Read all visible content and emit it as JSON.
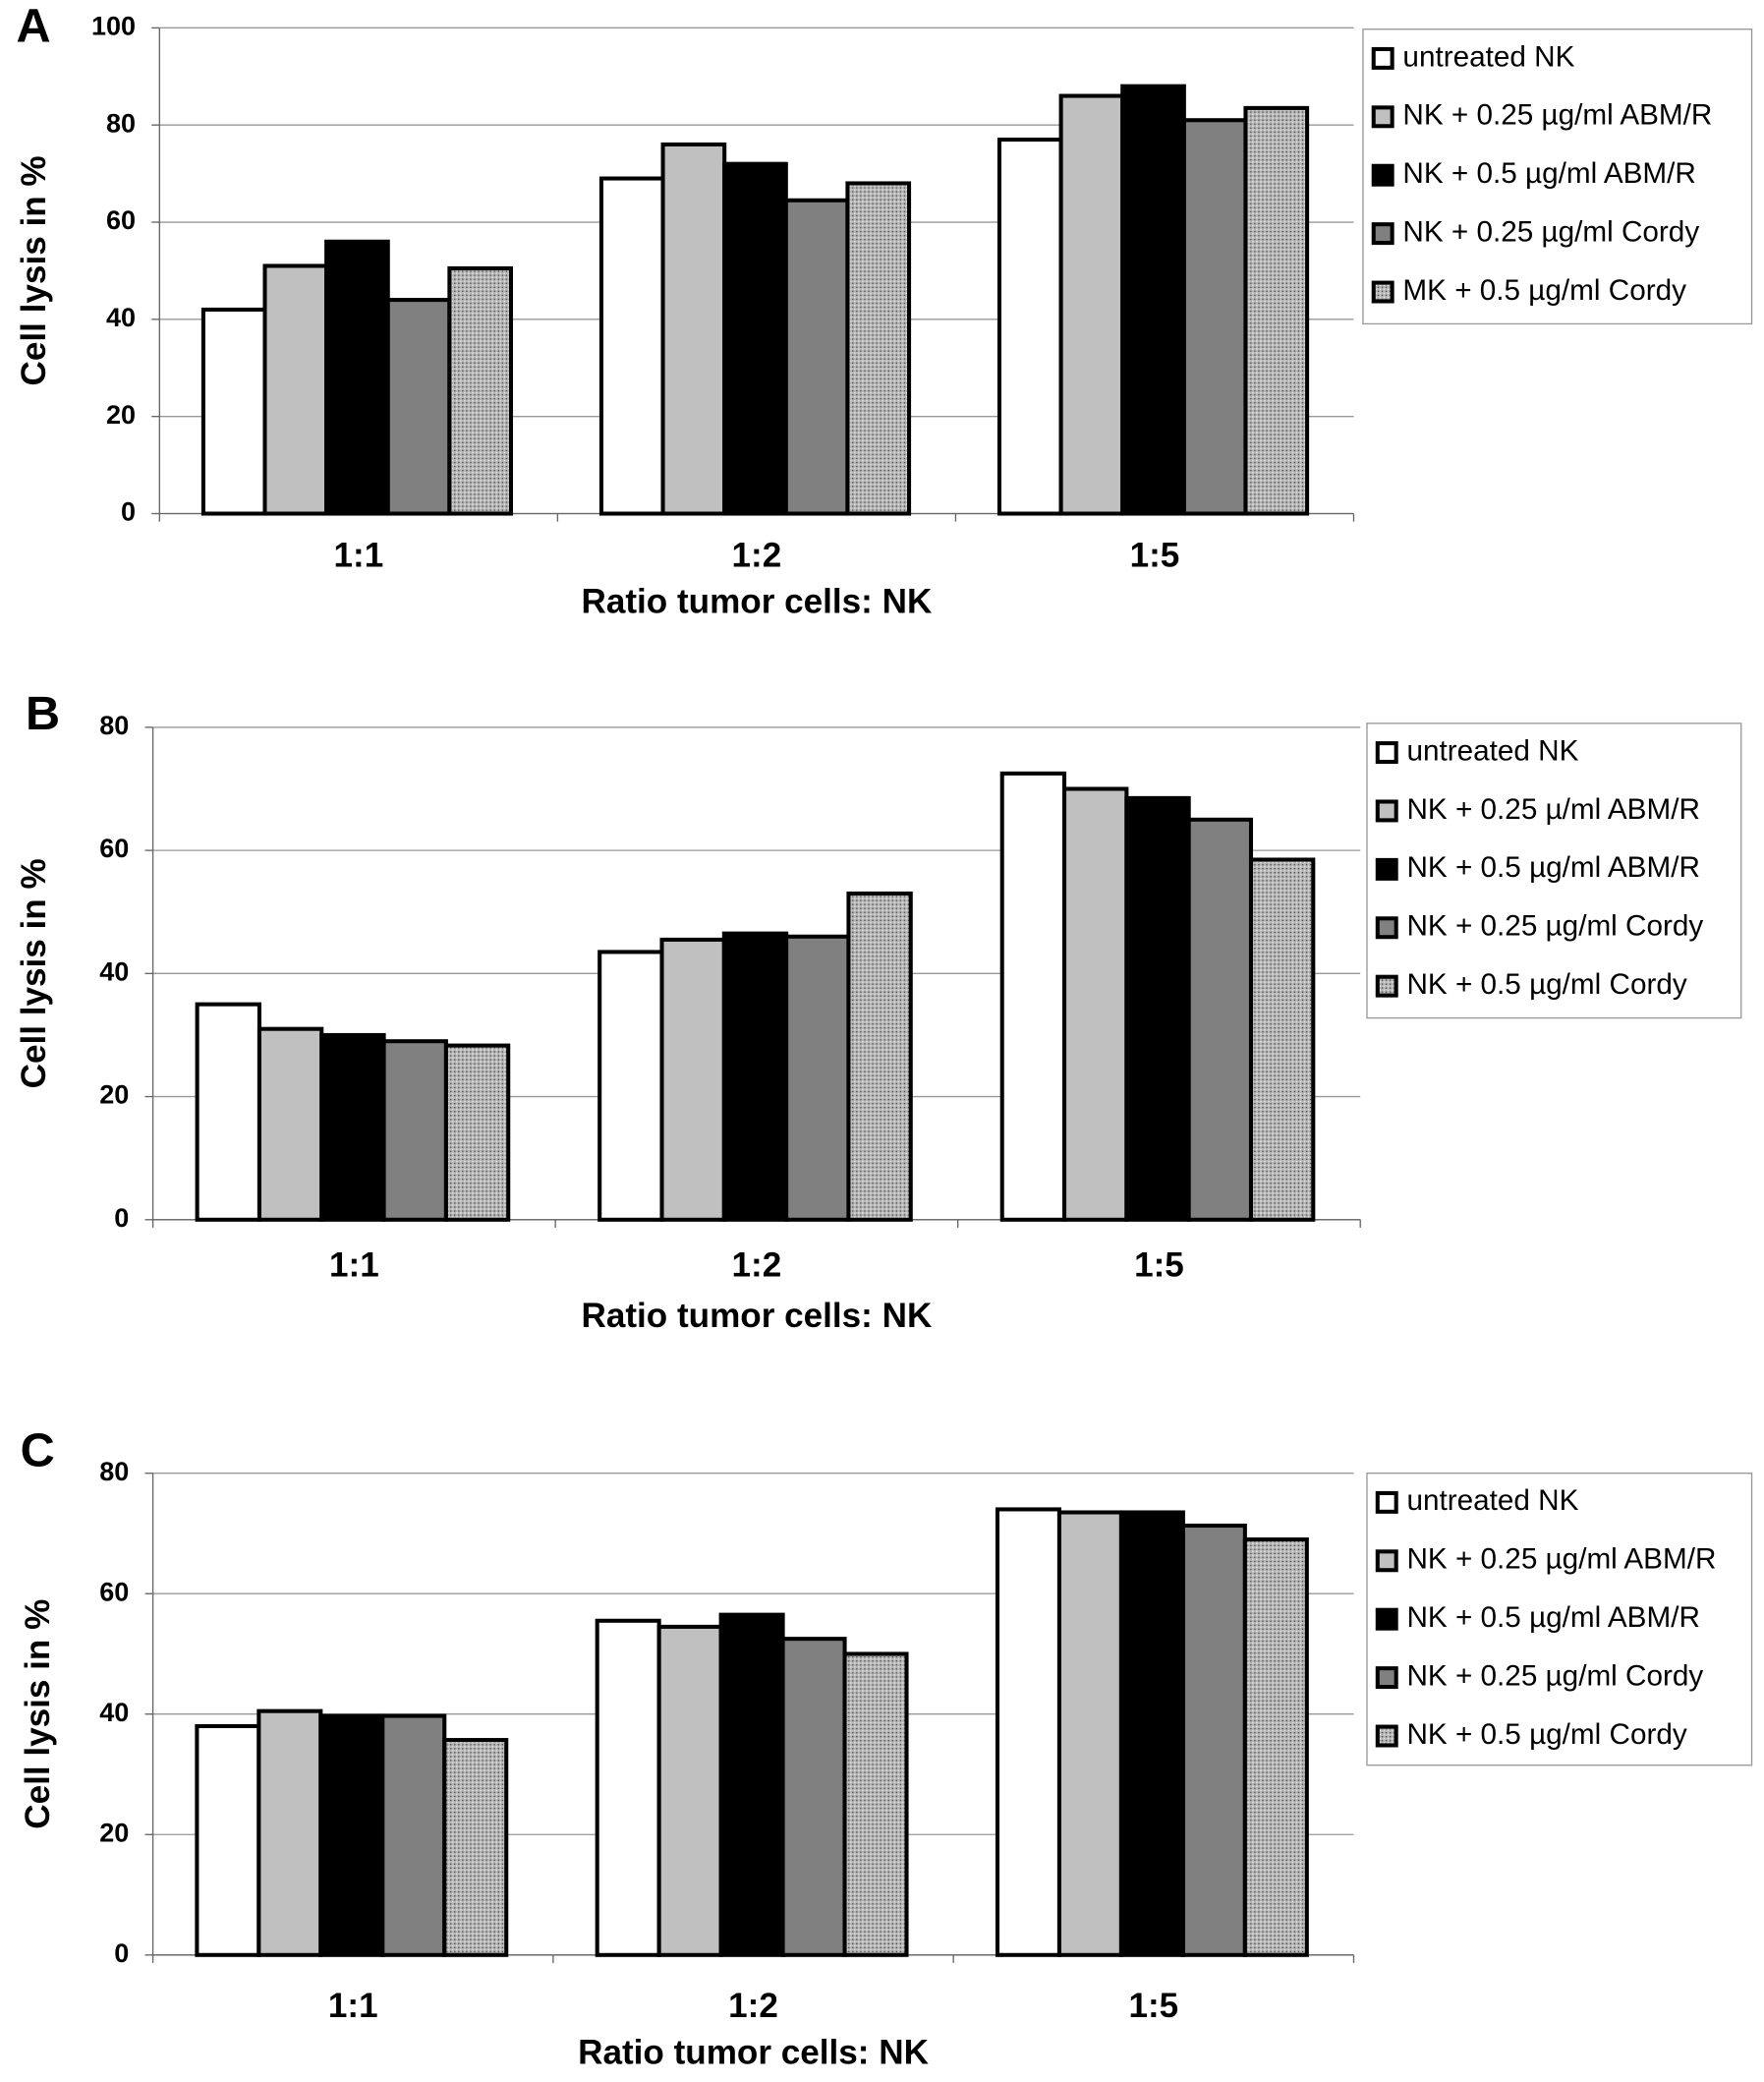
{
  "chart_data": [
    {
      "type": "bar",
      "panel_label": "A",
      "y_label": "Cell lysis in %",
      "x_label": "Ratio tumor cells: NK",
      "categories": [
        "1:1",
        "1:2",
        "1:5"
      ],
      "ylim": [
        0,
        100
      ],
      "yticks": [
        0,
        20,
        40,
        60,
        80,
        100
      ],
      "grid": true,
      "series": [
        {
          "name": "untreated NK",
          "color": "#ffffff",
          "values": [
            42,
            69,
            77
          ]
        },
        {
          "name": "NK + 0.25 µg/ml ABM/R",
          "color": "#c0c0c0",
          "values": [
            51,
            76,
            86
          ]
        },
        {
          "name": "NK + 0.5 µg/ml ABM/R",
          "color": "#000000",
          "values": [
            56,
            72,
            88
          ]
        },
        {
          "name": "NK + 0.25 µg/ml Cordy",
          "color": "#808080",
          "values": [
            44,
            64.5,
            81
          ]
        },
        {
          "name": "MK + 0.5 µg/ml Cordy",
          "color": "#b4b4b4",
          "values": [
            50.5,
            68,
            83.5
          ]
        }
      ]
    },
    {
      "type": "bar",
      "panel_label": "B",
      "y_label": "Cell lysis in %",
      "x_label": "Ratio tumor cells: NK",
      "categories": [
        "1:1",
        "1:2",
        "1:5"
      ],
      "ylim": [
        0,
        80
      ],
      "yticks": [
        0,
        20,
        40,
        60,
        80
      ],
      "grid": true,
      "series": [
        {
          "name": "untreated NK",
          "color": "#ffffff",
          "values": [
            35,
            43.5,
            72.5
          ]
        },
        {
          "name": "NK + 0.25 µ/ml ABM/R",
          "color": "#c0c0c0",
          "values": [
            31,
            45.5,
            70
          ]
        },
        {
          "name": "NK + 0.5 µg/ml ABM/R",
          "color": "#000000",
          "values": [
            30,
            46.5,
            68.5
          ]
        },
        {
          "name": "NK + 0.25 µg/ml Cordy",
          "color": "#808080",
          "values": [
            29,
            46,
            65
          ]
        },
        {
          "name": "NK + 0.5 µg/ml Cordy",
          "color": "#b4b4b4",
          "values": [
            28.3,
            53,
            58.5
          ]
        }
      ]
    },
    {
      "type": "bar",
      "panel_label": "C",
      "y_label": "Cell lysis in %",
      "x_label": "Ratio tumor cells: NK",
      "categories": [
        "1:1",
        "1:2",
        "1:5"
      ],
      "ylim": [
        0,
        80
      ],
      "yticks": [
        0,
        20,
        40,
        60,
        80
      ],
      "grid": true,
      "series": [
        {
          "name": "untreated NK",
          "color": "#ffffff",
          "values": [
            38,
            55.5,
            74
          ]
        },
        {
          "name": "NK + 0.25 µg/ml ABM/R",
          "color": "#c0c0c0",
          "values": [
            40.5,
            54.5,
            73.5
          ]
        },
        {
          "name": "NK + 0.5 µg/ml ABM/R",
          "color": "#000000",
          "values": [
            39.7,
            56.5,
            73.5
          ]
        },
        {
          "name": "NK + 0.25 µg/ml Cordy",
          "color": "#808080",
          "values": [
            39.7,
            52.5,
            71.3
          ]
        },
        {
          "name": "NK + 0.5 µg/ml Cordy",
          "color": "#b4b4b4",
          "values": [
            35.7,
            50,
            69
          ]
        }
      ]
    }
  ]
}
